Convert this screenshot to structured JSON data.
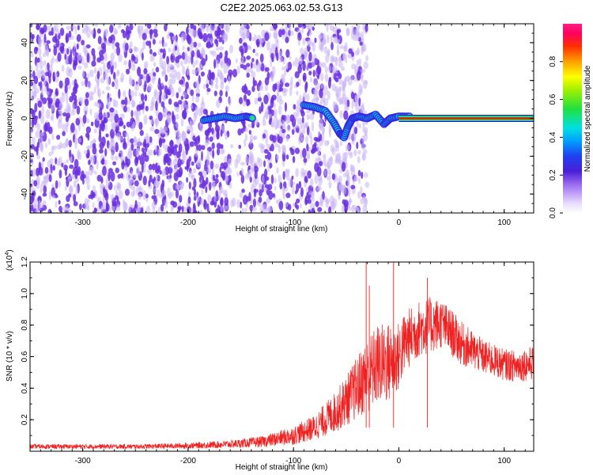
{
  "title": "C2E2.2025.063.02.53.G13",
  "colors": {
    "snr_line": "#ee2222",
    "ridge_core": "#ee1111",
    "ridge_halo": "#33dd33",
    "noise_strong": "#6a2fe0",
    "noise_weak": "#c9b4f5"
  },
  "chart_data": [
    {
      "type": "heatmap",
      "title": "C2E2.2025.063.02.53.G13",
      "xlabel": "Height of straight line (km)",
      "ylabel": "Frequency (Hz)",
      "xlim": [
        -350,
        128
      ],
      "ylim": [
        -50,
        50
      ],
      "x_ticks": [
        -300,
        -200,
        -100,
        0,
        100
      ],
      "x_tick_labels": [
        "-300",
        "-200",
        "-100",
        "0",
        "100"
      ],
      "y_ticks": [
        -40,
        -20,
        0,
        20,
        40
      ],
      "y_tick_labels": [
        "-40",
        "-20",
        "0",
        "20",
        "40"
      ],
      "colorbar": {
        "label": "Normalized spectral amplitude",
        "range": [
          0,
          1
        ],
        "ticks": [
          0.0,
          0.2,
          0.4,
          0.6,
          0.8
        ],
        "tick_labels": [
          "0.0",
          "0.2",
          "0.4",
          "0.6",
          "0.8"
        ],
        "colormap": "rainbow"
      },
      "features": {
        "noise_region_x": [
          -350,
          -40
        ],
        "noise_gap_x": [
          -160,
          -150
        ],
        "segment_a": [
          [
            -185,
            -1
          ],
          [
            -175,
            0
          ],
          [
            -165,
            1
          ],
          [
            -155,
            0
          ],
          [
            -145,
            1
          ],
          [
            -138,
            0
          ]
        ],
        "segment_b": [
          [
            -90,
            7
          ],
          [
            -80,
            6
          ],
          [
            -70,
            4
          ],
          [
            -62,
            -2
          ],
          [
            -56,
            -8
          ],
          [
            -52,
            -10
          ],
          [
            -48,
            -4
          ],
          [
            -44,
            0
          ],
          [
            -38,
            1
          ],
          [
            -30,
            0
          ],
          [
            -22,
            2
          ],
          [
            -14,
            -3
          ],
          [
            -8,
            0
          ],
          [
            0,
            1
          ],
          [
            12,
            1
          ]
        ],
        "steady_line": {
          "x": [
            0,
            128
          ],
          "y": 0
        }
      }
    },
    {
      "type": "line",
      "xlabel": "Height of straight line (km)",
      "ylabel": "SNR (10 * v/v)",
      "multiplier_label": "(x10",
      "multiplier_exp": "4",
      "xlim": [
        -350,
        128
      ],
      "ylim": [
        0,
        12000
      ],
      "x_ticks": [
        -300,
        -200,
        -100,
        0,
        100
      ],
      "x_tick_labels": [
        "-300",
        "-200",
        "-100",
        "0",
        "100"
      ],
      "y_ticks": [
        2000,
        4000,
        6000,
        8000,
        10000,
        12000
      ],
      "y_tick_labels": [
        "0.2",
        "0.4",
        "0.6",
        "0.8",
        "1.0",
        "1.2"
      ],
      "series": [
        {
          "envelope_x": [
            -350,
            -300,
            -250,
            -200,
            -160,
            -130,
            -100,
            -80,
            -60,
            -50,
            -40,
            -30,
            -20,
            -10,
            0,
            5,
            10,
            20,
            30,
            40,
            50,
            60,
            80,
            100,
            110,
            128
          ],
          "envelope_y": [
            300,
            300,
            300,
            350,
            450,
            600,
            1000,
            1500,
            2500,
            3200,
            4000,
            4800,
            5500,
            5600,
            6000,
            6800,
            7200,
            7800,
            8000,
            8100,
            7500,
            6800,
            6000,
            5500,
            5400,
            5600
          ],
          "noise_amplitude_y": [
            150,
            150,
            150,
            180,
            250,
            350,
            600,
            800,
            1300,
            1600,
            2000,
            2400,
            2600,
            2600,
            2200,
            2000,
            1900,
            1800,
            1800,
            1600,
            1500,
            1400,
            1100,
            1000,
            1000,
            1100
          ]
        }
      ],
      "spikes": [
        {
          "x": -31,
          "y": 12000
        },
        {
          "x": -28,
          "y": 10500
        },
        {
          "x": -5,
          "y": 12000
        },
        {
          "x": 27,
          "y": 11000
        }
      ]
    }
  ]
}
